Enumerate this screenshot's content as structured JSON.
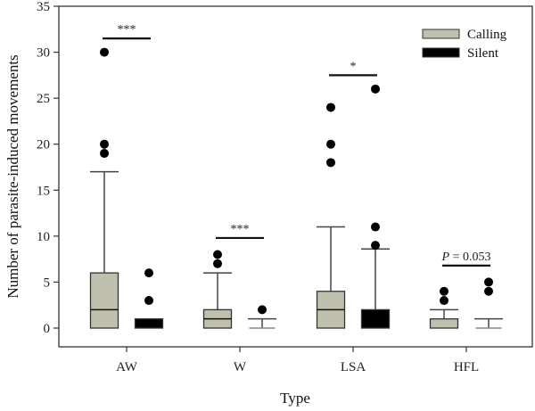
{
  "chart_data": {
    "type": "boxplot",
    "title": "",
    "xlabel": "Type",
    "ylabel": "Number of parasite-induced movements",
    "ylim": [
      0,
      35
    ],
    "yticks": [
      0,
      5,
      10,
      15,
      20,
      25,
      30,
      35
    ],
    "categories": [
      "AW",
      "W",
      "LSA",
      "HFL"
    ],
    "legend": {
      "position": "top-right",
      "entries": [
        {
          "name": "Calling",
          "color": "#c0c0ae"
        },
        {
          "name": "Silent",
          "color": "#000000"
        }
      ]
    },
    "series": [
      {
        "name": "Calling",
        "color": "#c0c0ae",
        "boxes": [
          {
            "category": "AW",
            "whisker_low": 0,
            "q1": 0,
            "median": 2,
            "q3": 6,
            "whisker_high": 17,
            "outliers": [
              19,
              20,
              30
            ]
          },
          {
            "category": "W",
            "whisker_low": 0,
            "q1": 0,
            "median": 1,
            "q3": 2,
            "whisker_high": 6,
            "outliers": [
              7,
              8
            ]
          },
          {
            "category": "LSA",
            "whisker_low": 0,
            "q1": 0,
            "median": 2,
            "q3": 4,
            "whisker_high": 11,
            "outliers": [
              18,
              20,
              24
            ]
          },
          {
            "category": "HFL",
            "whisker_low": 0,
            "q1": 0,
            "median": 0,
            "q3": 1,
            "whisker_high": 2,
            "outliers": [
              3,
              4
            ]
          }
        ]
      },
      {
        "name": "Silent",
        "color": "#000000",
        "boxes": [
          {
            "category": "AW",
            "whisker_low": 0,
            "q1": 0,
            "median": 0,
            "q3": 1,
            "whisker_high": 1,
            "outliers": [
              3,
              6
            ]
          },
          {
            "category": "W",
            "whisker_low": 0,
            "q1": 0,
            "median": 0,
            "q3": 0,
            "whisker_high": 1,
            "outliers": [
              2
            ]
          },
          {
            "category": "LSA",
            "whisker_low": 0,
            "q1": 0,
            "median": 0,
            "q3": 2,
            "whisker_high": 8.6,
            "outliers": [
              9,
              11,
              26
            ]
          },
          {
            "category": "HFL",
            "whisker_low": 0,
            "q1": 0,
            "median": 0,
            "q3": 0,
            "whisker_high": 1,
            "outliers": [
              4,
              5
            ]
          }
        ]
      }
    ],
    "annotations": [
      {
        "category": "AW",
        "text": "***",
        "y": 31.5
      },
      {
        "category": "W",
        "text": "***",
        "y": 9.8
      },
      {
        "category": "LSA",
        "text": "*",
        "y": 27.5
      },
      {
        "category": "HFL",
        "text": "P = 0.053",
        "y": 6.8
      }
    ]
  }
}
